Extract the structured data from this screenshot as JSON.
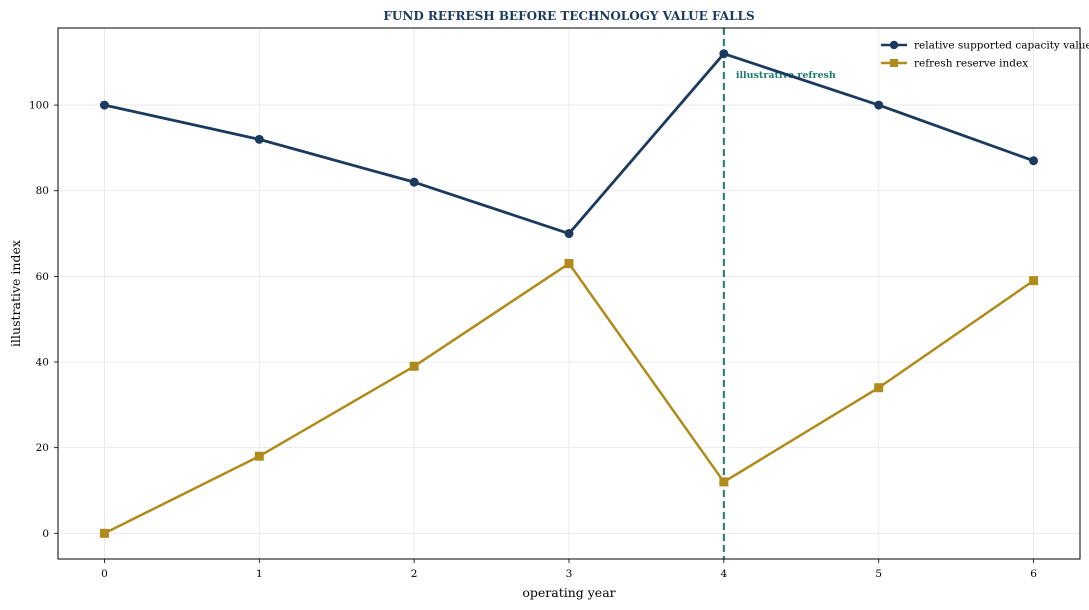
{
  "chart_data": {
    "type": "line",
    "title": "FUND REFRESH BEFORE TECHNOLOGY VALUE FALLS",
    "xlabel": "operating year",
    "ylabel": "illustrative index",
    "x": [
      0,
      1,
      2,
      3,
      4,
      5,
      6
    ],
    "xlim": [
      -0.3,
      6.3
    ],
    "ylim": [
      -6,
      118
    ],
    "xticks": [
      0,
      1,
      2,
      3,
      4,
      5,
      6
    ],
    "yticks": [
      0,
      20,
      40,
      60,
      80,
      100
    ],
    "grid": true,
    "legend_position": "top-right",
    "series": [
      {
        "name": "relative supported capacity value",
        "values": [
          100,
          92,
          82,
          70,
          112,
          100,
          87
        ],
        "color": "#1b3a5e",
        "marker": "circle"
      },
      {
        "name": "refresh reserve index",
        "values": [
          0,
          18,
          39,
          63,
          12,
          34,
          59
        ],
        "color": "#b08a1a",
        "marker": "square"
      }
    ],
    "annotations": [
      {
        "type": "vline",
        "x": 4,
        "color": "#1f7a6a",
        "label": "illustrative refresh"
      }
    ],
    "title_color": "#1b3a5e"
  }
}
